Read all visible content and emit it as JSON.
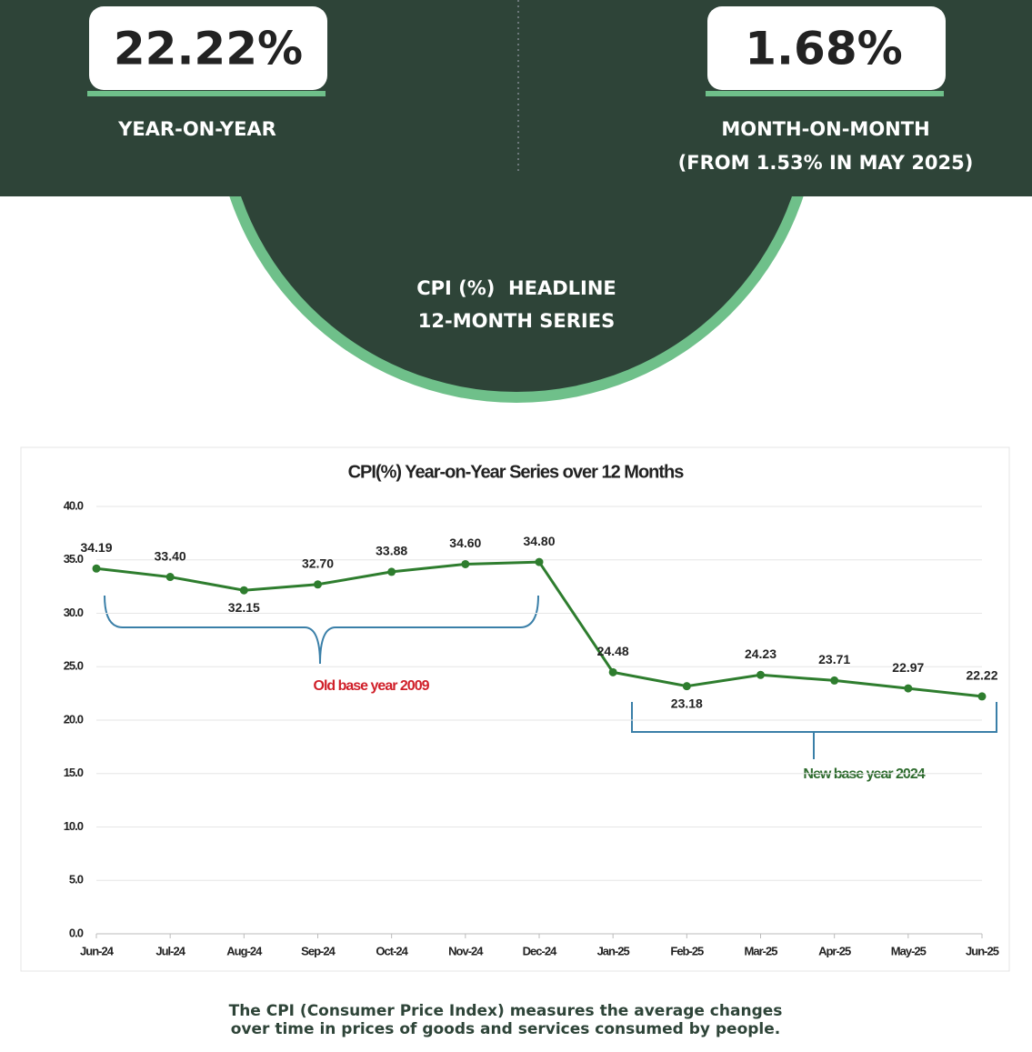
{
  "header": {
    "yoy": {
      "value": "22.22%",
      "label": "YEAR-ON-YEAR"
    },
    "mom": {
      "value": "1.68%",
      "label": "MONTH-ON-MONTH",
      "note": "(FROM 1.53% IN MAY 2025)"
    },
    "badge": [
      "CPI (%)  HEADLINE",
      "12-MONTH SERIES"
    ]
  },
  "chart_data": {
    "type": "line",
    "title": "CPI(%) Year-on-Year Series over 12 Months",
    "categories": [
      "Jun-24",
      "Jul-24",
      "Aug-24",
      "Sep-24",
      "Oct-24",
      "Nov-24",
      "Dec-24",
      "Jan-25",
      "Feb-25",
      "Mar-25",
      "Apr-25",
      "May-25",
      "Jun-25"
    ],
    "values": [
      34.19,
      33.4,
      32.15,
      32.7,
      33.88,
      34.6,
      34.8,
      24.48,
      23.18,
      24.23,
      23.71,
      22.97,
      22.22
    ],
    "value_labels": [
      "34.19",
      "33.40",
      "32.15",
      "32.70",
      "33.88",
      "34.60",
      "34.80",
      "24.48",
      "23.18",
      "24.23",
      "23.71",
      "22.97",
      "22.22"
    ],
    "color": "#2e7d2e",
    "ylim": [
      0,
      40
    ],
    "yticks": [
      {
        "value": 0,
        "label": "0.0"
      },
      {
        "value": 5,
        "label": "5.0"
      },
      {
        "value": 10,
        "label": "10.0"
      },
      {
        "value": 15,
        "label": "15.0"
      },
      {
        "value": 20,
        "label": "20.0"
      },
      {
        "value": 25,
        "label": "25.0"
      },
      {
        "value": 30,
        "label": "30.0"
      },
      {
        "value": 35,
        "label": "35.0"
      },
      {
        "value": 40,
        "label": "40.0"
      }
    ],
    "grid": true,
    "annotations": [
      "Old base year 2009",
      "New base year 2024"
    ]
  },
  "footer": [
    "The CPI (Consumer Price Index) measures the average changes",
    "over time in prices of goods and services consumed by people."
  ]
}
